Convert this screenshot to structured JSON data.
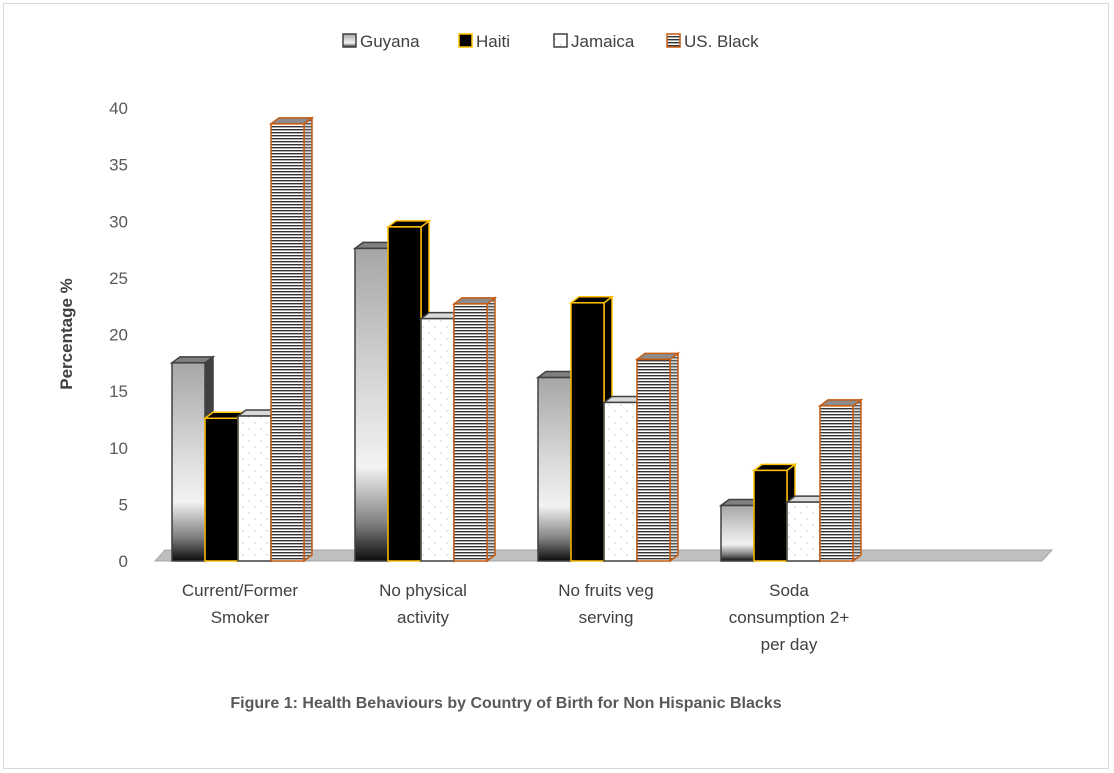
{
  "chart_data": {
    "type": "bar",
    "title": "",
    "caption": "Figure 1: Health Behaviours by Country of Birth for Non Hispanic Blacks",
    "xlabel": "",
    "ylabel": "Percentage %",
    "ylim": [
      0,
      40
    ],
    "yticks": [
      0,
      5,
      10,
      15,
      20,
      25,
      30,
      35,
      40
    ],
    "grid": false,
    "legend_position": "top",
    "categories": [
      [
        "Current/Former",
        "Smoker"
      ],
      [
        "No physical",
        "activity"
      ],
      [
        "No fruits veg",
        "serving"
      ],
      [
        "Soda",
        "consumption 2+",
        "per day"
      ]
    ],
    "series": [
      {
        "name": "Guyana",
        "values": [
          17.5,
          27.6,
          16.2,
          4.9
        ],
        "style": "gradient-gray",
        "fill": "#bfbfbf",
        "stroke": "#404040"
      },
      {
        "name": "Haiti",
        "values": [
          12.6,
          29.5,
          22.8,
          8.0
        ],
        "style": "solid-black",
        "fill": "#000000",
        "stroke": "#ffc000"
      },
      {
        "name": "Jamaica",
        "values": [
          12.8,
          21.4,
          14.0,
          5.2
        ],
        "style": "white-dotted",
        "fill": "#ffffff",
        "stroke": "#404040"
      },
      {
        "name": "US. Black",
        "values": [
          38.6,
          22.7,
          17.8,
          13.7
        ],
        "style": "horizontal-stripes",
        "fill": "#ffffff",
        "stroke": "#c55a11"
      }
    ]
  }
}
